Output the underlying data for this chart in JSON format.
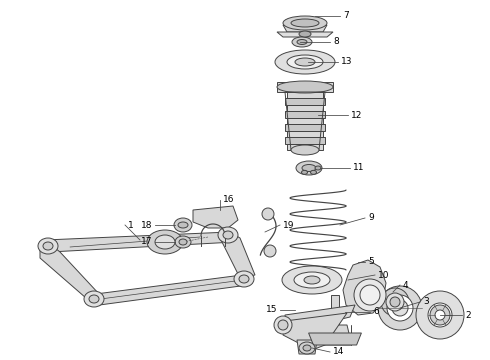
{
  "bg_color": "#ffffff",
  "line_color": "#444444",
  "label_color": "#000000",
  "font_size": 6.5,
  "lw": 0.7,
  "fig_w": 4.9,
  "fig_h": 3.6,
  "dpi": 100
}
